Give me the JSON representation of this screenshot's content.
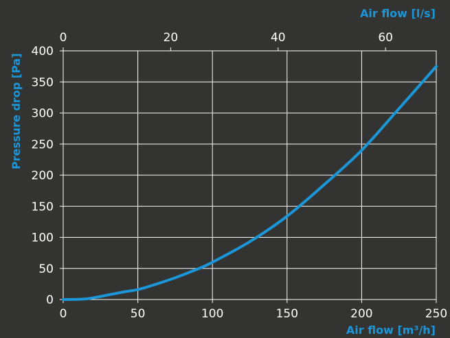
{
  "chart_data": {
    "type": "line",
    "title": "",
    "xlabel": "Air flow [m³/h]",
    "x2label": "Air flow [l/s]",
    "ylabel": "Pressure drop [Pa]",
    "xlim": [
      0,
      250
    ],
    "x2lim": [
      0,
      69.44
    ],
    "ylim": [
      0,
      400
    ],
    "x_ticks": [
      0,
      50,
      100,
      150,
      200,
      250
    ],
    "x2_ticks": [
      0,
      20,
      40,
      60
    ],
    "y_ticks": [
      0,
      50,
      100,
      150,
      200,
      250,
      300,
      350,
      400
    ],
    "grid": true,
    "legend": "none",
    "series": [
      {
        "color": "#1b96d9",
        "x": [
          0,
          15,
          25,
          40,
          50,
          60,
          75,
          90,
          100,
          125,
          150,
          175,
          200,
          225,
          250
        ],
        "y": [
          0,
          1,
          5,
          12,
          16,
          23,
          35,
          49,
          60,
          93,
          134,
          185,
          240,
          307,
          375
        ]
      }
    ]
  }
}
